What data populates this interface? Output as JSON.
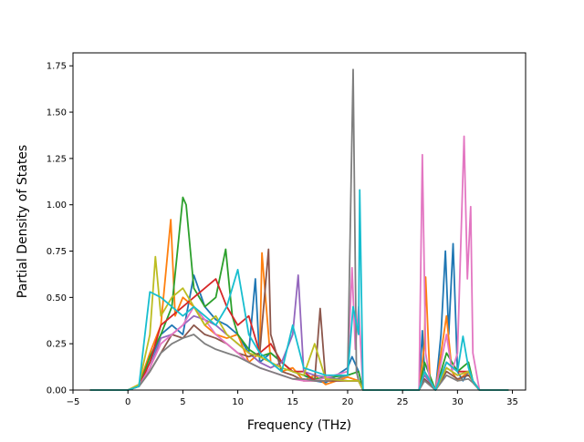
{
  "chart_data": {
    "type": "line",
    "title": "",
    "xlabel": "Frequency (THz)",
    "ylabel": "Partial Density of States",
    "xlim": [
      -5.0,
      36.2
    ],
    "ylim": [
      0.0,
      1.82
    ],
    "xticks": [
      -5,
      0,
      5,
      10,
      15,
      20,
      25,
      30,
      35
    ],
    "xtick_labels": [
      "−5",
      "0",
      "5",
      "10",
      "15",
      "20",
      "25",
      "30",
      "35"
    ],
    "yticks": [
      0.0,
      0.25,
      0.5,
      0.75,
      1.0,
      1.25,
      1.5,
      1.75
    ],
    "ytick_labels": [
      "0.00",
      "0.25",
      "0.50",
      "0.75",
      "1.00",
      "1.25",
      "1.50",
      "1.75"
    ],
    "grid": false,
    "legend": "none",
    "series": [
      {
        "color": "#1f77b4",
        "x": [
          -3.4,
          0,
          1,
          2,
          3,
          4,
          5,
          6,
          7,
          8,
          9,
          10,
          11,
          11.6,
          12,
          13,
          14,
          15,
          16,
          17,
          18,
          19,
          20,
          20.4,
          21,
          21.4,
          26.5,
          26.8,
          27,
          27.5,
          28,
          28.5,
          28.9,
          29.2,
          29.6,
          30,
          30.5,
          31,
          31.4,
          32,
          34.6
        ],
        "y": [
          0,
          0,
          0.02,
          0.15,
          0.3,
          0.35,
          0.3,
          0.62,
          0.45,
          0.38,
          0.35,
          0.3,
          0.2,
          0.6,
          0.15,
          0.2,
          0.15,
          0.1,
          0.08,
          0.05,
          0.04,
          0.08,
          0.12,
          0.18,
          0.1,
          0,
          0,
          0.32,
          0.1,
          0.05,
          0,
          0.3,
          0.75,
          0.3,
          0.79,
          0.1,
          0.05,
          0.1,
          0.05,
          0,
          0
        ]
      },
      {
        "color": "#ff7f0e",
        "x": [
          -3.4,
          0,
          1,
          2,
          3,
          3.9,
          4.3,
          5,
          6,
          7,
          8,
          9,
          10,
          11,
          12,
          12.2,
          13,
          14,
          15,
          16,
          17,
          18,
          20,
          21,
          21.4,
          26.5,
          27,
          27.1,
          27.5,
          28,
          29,
          29.5,
          30,
          31,
          31.4,
          32,
          34.6
        ],
        "y": [
          0,
          0,
          0.03,
          0.2,
          0.35,
          0.92,
          0.4,
          0.5,
          0.45,
          0.35,
          0.3,
          0.28,
          0.3,
          0.15,
          0.2,
          0.74,
          0.15,
          0.1,
          0.12,
          0.05,
          0.08,
          0.03,
          0.07,
          0.05,
          0,
          0,
          0.25,
          0.61,
          0.05,
          0,
          0.4,
          0.1,
          0.05,
          0.1,
          0.05,
          0,
          0
        ]
      },
      {
        "color": "#2ca02c",
        "x": [
          -3.4,
          0,
          1,
          2,
          3,
          4,
          5,
          5.3,
          6,
          7,
          8,
          8.9,
          9.5,
          10,
          11,
          12,
          13,
          14,
          15,
          16,
          17,
          20,
          21,
          21.4,
          26.5,
          27,
          28,
          29,
          30,
          31,
          31.4,
          32,
          34.6
        ],
        "y": [
          0,
          0,
          0.02,
          0.18,
          0.3,
          0.45,
          1.04,
          1.0,
          0.55,
          0.45,
          0.5,
          0.76,
          0.4,
          0.3,
          0.22,
          0.18,
          0.2,
          0.15,
          0.1,
          0.08,
          0.06,
          0.08,
          0.1,
          0,
          0,
          0.15,
          0,
          0.2,
          0.1,
          0.15,
          0.05,
          0,
          0
        ]
      },
      {
        "color": "#d62728",
        "x": [
          -3.4,
          0,
          1,
          2,
          3,
          4,
          5,
          6,
          7,
          8,
          9,
          10,
          11,
          12,
          13,
          14,
          15,
          16,
          17,
          20,
          21,
          21.4,
          26.5,
          27,
          28,
          29,
          30,
          31,
          31.4,
          32,
          34.6
        ],
        "y": [
          0,
          0,
          0.02,
          0.15,
          0.35,
          0.4,
          0.45,
          0.5,
          0.55,
          0.6,
          0.45,
          0.35,
          0.4,
          0.2,
          0.25,
          0.15,
          0.1,
          0.1,
          0.05,
          0.05,
          0.05,
          0,
          0,
          0.1,
          0,
          0.15,
          0.1,
          0.1,
          0.05,
          0,
          0
        ]
      },
      {
        "color": "#9467bd",
        "x": [
          -3.4,
          0,
          1,
          2,
          3,
          4,
          5,
          6,
          7,
          8,
          9,
          10,
          11,
          12,
          13,
          14,
          15,
          15.5,
          16,
          17,
          20,
          21,
          21.4,
          26.5,
          27,
          28,
          29,
          30,
          31,
          31.4,
          32,
          34.6
        ],
        "y": [
          0,
          0,
          0.02,
          0.12,
          0.28,
          0.3,
          0.35,
          0.4,
          0.38,
          0.35,
          0.3,
          0.25,
          0.2,
          0.15,
          0.12,
          0.15,
          0.3,
          0.62,
          0.1,
          0.08,
          0.05,
          0.05,
          0,
          0,
          0.08,
          0,
          0.12,
          0.08,
          0.1,
          0.05,
          0,
          0
        ]
      },
      {
        "color": "#8c564b",
        "x": [
          -3.4,
          0,
          1,
          2,
          3,
          4,
          5,
          6,
          7,
          8,
          9,
          10,
          11,
          12,
          12.8,
          13,
          14,
          15,
          16,
          17,
          17.5,
          18,
          20,
          21,
          21.4,
          26.5,
          27,
          28,
          29,
          30,
          31,
          31.4,
          32,
          34.6
        ],
        "y": [
          0,
          0,
          0.02,
          0.1,
          0.2,
          0.3,
          0.28,
          0.35,
          0.3,
          0.28,
          0.25,
          0.2,
          0.18,
          0.2,
          0.76,
          0.3,
          0.1,
          0.08,
          0.05,
          0.05,
          0.44,
          0.05,
          0.05,
          0.05,
          0,
          0,
          0.06,
          0,
          0.1,
          0.06,
          0.08,
          0.05,
          0,
          0
        ]
      },
      {
        "color": "#e377c2",
        "x": [
          -3.4,
          0,
          1,
          2,
          3,
          4,
          5,
          6,
          7,
          8,
          9,
          10,
          11,
          12,
          13,
          14,
          15,
          16,
          17,
          20,
          20.4,
          20.7,
          21,
          21.4,
          26.5,
          26.8,
          27.1,
          27.5,
          28,
          29,
          29.5,
          30,
          30.6,
          30.9,
          31.2,
          31.4,
          32,
          34.6
        ],
        "y": [
          0,
          0,
          0.02,
          0.12,
          0.25,
          0.3,
          0.35,
          0.45,
          0.38,
          0.3,
          0.25,
          0.2,
          0.15,
          0.12,
          0.1,
          0.08,
          0.06,
          0.05,
          0.05,
          0.1,
          0.66,
          0.22,
          0.45,
          0,
          0,
          1.27,
          0.2,
          0.05,
          0,
          0.3,
          0.1,
          0.2,
          1.37,
          0.6,
          0.99,
          0.2,
          0,
          0
        ]
      },
      {
        "color": "#7f7f7f",
        "x": [
          -3.4,
          0,
          1,
          2,
          3,
          4,
          5,
          6,
          7,
          8,
          9,
          10,
          11,
          12,
          13,
          14,
          15,
          16,
          17,
          18,
          19,
          20,
          20.5,
          20.8,
          21,
          21.4,
          26.5,
          27,
          28,
          29,
          30,
          31,
          31.4,
          32,
          34.6
        ],
        "y": [
          0,
          0,
          0.02,
          0.1,
          0.2,
          0.25,
          0.28,
          0.3,
          0.25,
          0.22,
          0.2,
          0.18,
          0.15,
          0.12,
          0.1,
          0.08,
          0.06,
          0.06,
          0.05,
          0.05,
          0.06,
          0.08,
          1.73,
          0.1,
          0.05,
          0,
          0,
          0.05,
          0,
          0.08,
          0.05,
          0.06,
          0.04,
          0,
          0
        ]
      },
      {
        "color": "#bcbd22",
        "x": [
          -3.4,
          0,
          1,
          2,
          2.5,
          3,
          4,
          5,
          6,
          7,
          8,
          9,
          10,
          11,
          12,
          13,
          14,
          15,
          16,
          17,
          18,
          20,
          21,
          21.4,
          26.5,
          27,
          28,
          29,
          30,
          31,
          31.4,
          32,
          34.6
        ],
        "y": [
          0,
          0,
          0.03,
          0.3,
          0.72,
          0.4,
          0.5,
          0.55,
          0.45,
          0.35,
          0.4,
          0.3,
          0.25,
          0.2,
          0.18,
          0.15,
          0.12,
          0.1,
          0.08,
          0.25,
          0.06,
          0.05,
          0.05,
          0,
          0,
          0.1,
          0,
          0.12,
          0.08,
          0.1,
          0.05,
          0,
          0
        ]
      },
      {
        "color": "#17becf",
        "x": [
          -3.4,
          0,
          1,
          2,
          3,
          4,
          5,
          6,
          7,
          8,
          9,
          10,
          11,
          12,
          13,
          14,
          15,
          16,
          17,
          18,
          20,
          20.5,
          21,
          21.1,
          21.4,
          26.5,
          27,
          28,
          29,
          30,
          30.5,
          31,
          31.4,
          32,
          34.6
        ],
        "y": [
          0,
          0,
          0.02,
          0.53,
          0.5,
          0.45,
          0.4,
          0.45,
          0.4,
          0.35,
          0.45,
          0.65,
          0.3,
          0.2,
          0.15,
          0.1,
          0.35,
          0.12,
          0.1,
          0.08,
          0.08,
          0.45,
          0.3,
          1.08,
          0,
          0,
          0.1,
          0,
          0.15,
          0.1,
          0.29,
          0.12,
          0.05,
          0,
          0
        ]
      }
    ]
  }
}
